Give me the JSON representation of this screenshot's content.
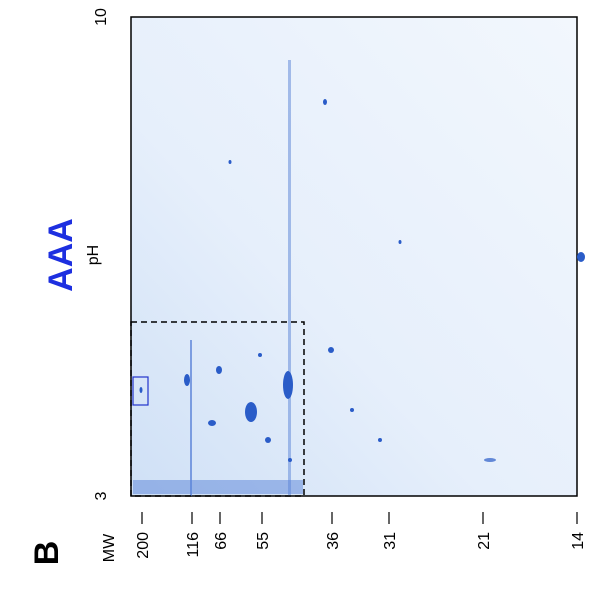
{
  "panel": {
    "label": "B",
    "title": "AAA"
  },
  "ph_axis": {
    "label": "pH",
    "high": "10",
    "low": "3"
  },
  "mw_axis": {
    "label": "MW",
    "ticks": [
      "200",
      "116",
      "66",
      "55",
      "36",
      "31",
      "21",
      "14"
    ]
  }
}
